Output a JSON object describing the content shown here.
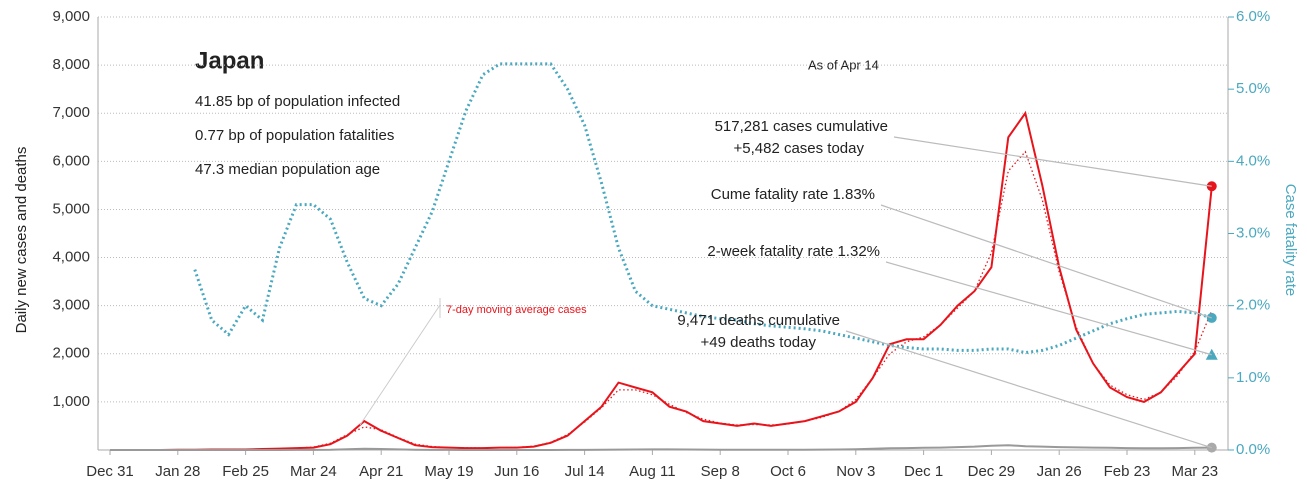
{
  "chart_data": {
    "type": "line",
    "title": "Japan",
    "subtitle_lines": [
      "41.85 bp of population infected",
      "0.77 bp of population fatalities",
      "47.3 median population age"
    ],
    "as_of": "As of Apr 14",
    "ylabel": "Daily new cases and deaths",
    "y2label": "Case fatality rate",
    "categories": [
      "Dec 31",
      null,
      null,
      null,
      "Jan 28",
      null,
      null,
      null,
      "Feb 25",
      null,
      null,
      null,
      "Mar 24",
      null,
      null,
      null,
      "Apr 21",
      null,
      null,
      null,
      "May 19",
      null,
      null,
      null,
      "Jun 16",
      null,
      null,
      null,
      "Jul 14",
      null,
      null,
      null,
      "Aug 11",
      null,
      null,
      null,
      "Sep 8",
      null,
      null,
      null,
      "Oct 6",
      null,
      null,
      null,
      "Nov 3",
      null,
      null,
      null,
      "Dec 1",
      null,
      null,
      null,
      "Dec 29",
      null,
      null,
      null,
      "Jan 26",
      null,
      null,
      null,
      "Feb 23",
      null,
      null,
      null,
      "Mar 23",
      null
    ],
    "ylim": [
      0,
      9000
    ],
    "yticks": [
      {
        "value": 1000,
        "label": "1,000"
      },
      {
        "value": 2000,
        "label": "2,000"
      },
      {
        "value": 3000,
        "label": "3,000"
      },
      {
        "value": 4000,
        "label": "4,000"
      },
      {
        "value": 5000,
        "label": "5,000"
      },
      {
        "value": 6000,
        "label": "6,000"
      },
      {
        "value": 7000,
        "label": "7,000"
      },
      {
        "value": 8000,
        "label": "8,000"
      },
      {
        "value": 9000,
        "label": "9,000"
      }
    ],
    "y2lim": [
      0,
      6
    ],
    "y2ticks": [
      {
        "value": 0,
        "label": "0.0%"
      },
      {
        "value": 1,
        "label": "1.0%"
      },
      {
        "value": 2,
        "label": "2.0%"
      },
      {
        "value": 3,
        "label": "3.0%"
      },
      {
        "value": 4,
        "label": "4.0%"
      },
      {
        "value": 5,
        "label": "5.0%"
      },
      {
        "value": 6,
        "label": "6.0%"
      }
    ],
    "grid": true,
    "series": [
      {
        "color": "#e8141b",
        "style": "solid",
        "values": [
          0,
          0,
          0,
          0,
          5,
          5,
          10,
          10,
          10,
          20,
          30,
          40,
          50,
          120,
          300,
          600,
          400,
          250,
          100,
          60,
          50,
          40,
          40,
          50,
          50,
          70,
          150,
          300,
          600,
          900,
          1400,
          1300,
          1200,
          900,
          800,
          600,
          550,
          500,
          550,
          500,
          550,
          600,
          700,
          800,
          1000,
          1500,
          2200,
          2300,
          2300,
          2600,
          3000,
          3300,
          3800,
          6500,
          7000,
          5500,
          3800,
          2500,
          1800,
          1300,
          1100,
          1000,
          1200,
          1600,
          2000,
          5482
        ]
      },
      {
        "name": "7-day moving average cases",
        "color": "#e8141b",
        "style": "dotted",
        "values": [
          0,
          0,
          0,
          0,
          4,
          5,
          8,
          10,
          12,
          18,
          28,
          38,
          60,
          140,
          320,
          480,
          420,
          260,
          120,
          70,
          50,
          45,
          42,
          48,
          55,
          80,
          160,
          320,
          580,
          880,
          1250,
          1250,
          1150,
          950,
          780,
          640,
          560,
          520,
          530,
          520,
          540,
          600,
          680,
          800,
          1050,
          1500,
          2000,
          2250,
          2350,
          2600,
          2950,
          3300,
          4100,
          5800,
          6200,
          5200,
          3700,
          2550,
          1800,
          1350,
          1150,
          1050,
          1200,
          1550,
          2050,
          2900
        ]
      },
      {
        "color": "#999999",
        "style": "solid",
        "values": [
          0,
          0,
          0,
          0,
          0,
          0,
          0,
          0,
          0,
          1,
          1,
          2,
          3,
          5,
          15,
          25,
          20,
          12,
          6,
          3,
          2,
          1,
          1,
          1,
          1,
          1,
          1,
          2,
          3,
          5,
          8,
          10,
          12,
          12,
          10,
          8,
          7,
          6,
          6,
          5,
          6,
          6,
          8,
          10,
          14,
          25,
          35,
          40,
          45,
          50,
          60,
          70,
          90,
          100,
          80,
          70,
          60,
          55,
          50,
          45,
          40,
          35,
          35,
          40,
          45,
          49
        ]
      },
      {
        "color": "#4aa8bf",
        "style": "dotted",
        "axis": "y2",
        "values": [
          null,
          null,
          null,
          null,
          null,
          2.5,
          1.8,
          1.6,
          2.0,
          1.8,
          2.8,
          3.4,
          3.4,
          3.2,
          2.6,
          2.1,
          2.0,
          2.3,
          2.8,
          3.3,
          4.0,
          4.7,
          5.2,
          5.35,
          5.35,
          5.35,
          5.35,
          5.0,
          4.5,
          3.7,
          2.8,
          2.2,
          2.0,
          1.95,
          1.9,
          1.85,
          1.82,
          1.8,
          1.75,
          1.72,
          1.7,
          1.68,
          1.65,
          1.6,
          1.55,
          1.5,
          1.45,
          1.42,
          1.4,
          1.4,
          1.38,
          1.38,
          1.4,
          1.4,
          1.35,
          1.38,
          1.45,
          1.55,
          1.65,
          1.75,
          1.82,
          1.88,
          1.9,
          1.92,
          1.9,
          1.83
        ]
      }
    ],
    "two_week_rate": 1.32,
    "annotations": [
      {
        "lines": [
          "517,281 cases cumulative",
          "+5,482 cases today"
        ]
      },
      {
        "lines": [
          "Cume fatality rate 1.83%"
        ]
      },
      {
        "lines": [
          "2-week fatality rate 1.32%"
        ]
      },
      {
        "lines": [
          "9,471 deaths cumulative",
          "+49 deaths today"
        ]
      }
    ]
  }
}
